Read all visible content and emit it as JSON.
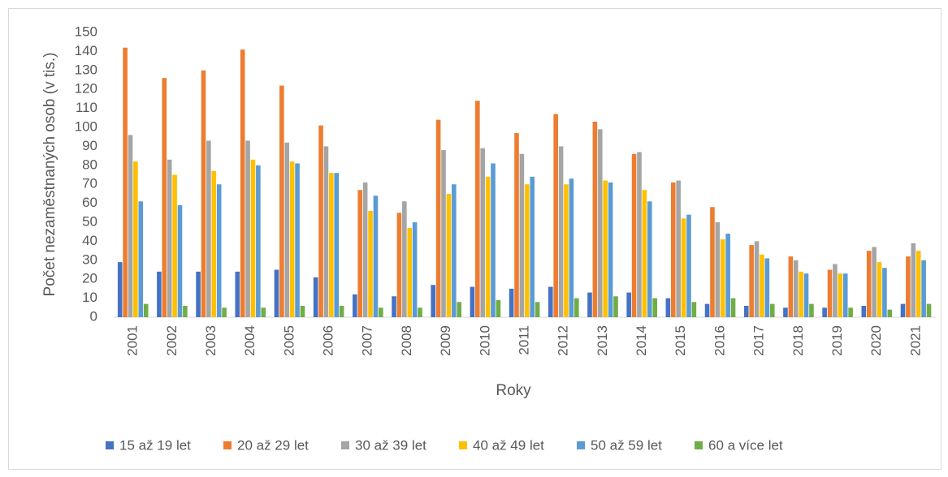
{
  "chart_data": {
    "type": "bar",
    "x_label": "Roky",
    "y_label": "Počet nezaměstnaných osob (v tis.)",
    "categories": [
      "2001",
      "2002",
      "2003",
      "2004",
      "2005",
      "2006",
      "2007",
      "2008",
      "2009",
      "2010",
      "2011",
      "2012",
      "2013",
      "2014",
      "2015",
      "2016",
      "2017",
      "2018",
      "2019",
      "2020",
      "2021"
    ],
    "series": [
      {
        "name": "15 až 19 let",
        "color": "#4472c4",
        "values": [
          29,
          24,
          24,
          24,
          25,
          21,
          12,
          11,
          17,
          16,
          15,
          16,
          13,
          13,
          10,
          7,
          6,
          5,
          5,
          6,
          7
        ]
      },
      {
        "name": "20 až 29 let",
        "color": "#ed7d31",
        "values": [
          142,
          126,
          130,
          141,
          122,
          101,
          67,
          55,
          104,
          114,
          97,
          107,
          103,
          86,
          71,
          58,
          38,
          32,
          25,
          35,
          32
        ]
      },
      {
        "name": "30 až 39 let",
        "color": "#a5a5a5",
        "values": [
          96,
          83,
          93,
          93,
          92,
          90,
          71,
          61,
          88,
          89,
          86,
          90,
          99,
          87,
          72,
          50,
          40,
          30,
          28,
          37,
          39
        ]
      },
      {
        "name": "40 až 49 let",
        "color": "#ffc000",
        "values": [
          82,
          75,
          77,
          83,
          82,
          76,
          56,
          47,
          65,
          74,
          70,
          70,
          72,
          67,
          52,
          41,
          33,
          24,
          23,
          29,
          35
        ]
      },
      {
        "name": "50 až 59 let",
        "color": "#5b9bd5",
        "values": [
          61,
          59,
          70,
          80,
          81,
          76,
          64,
          50,
          70,
          81,
          74,
          73,
          71,
          61,
          54,
          44,
          31,
          23,
          23,
          26,
          30
        ]
      },
      {
        "name": "60 a více let",
        "color": "#70ad47",
        "values": [
          7,
          6,
          5,
          5,
          6,
          6,
          5,
          5,
          8,
          9,
          8,
          10,
          11,
          10,
          8,
          10,
          7,
          7,
          5,
          4,
          7
        ]
      }
    ],
    "ylim": [
      0,
      150
    ],
    "yticks": [
      0,
      10,
      20,
      30,
      40,
      50,
      60,
      70,
      80,
      90,
      100,
      110,
      120,
      130,
      140,
      150
    ],
    "grid": false
  }
}
